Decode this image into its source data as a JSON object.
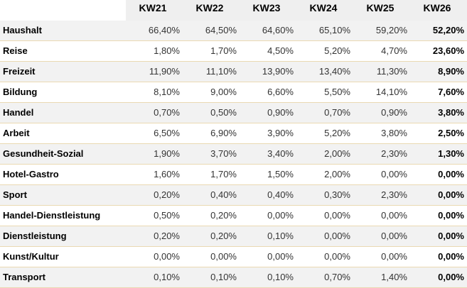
{
  "chart_data": {
    "type": "table",
    "columns": [
      "KW21",
      "KW22",
      "KW23",
      "KW24",
      "KW25",
      "KW26"
    ],
    "rows": [
      {
        "label": "Haushalt",
        "values": [
          "66,40%",
          "64,50%",
          "64,60%",
          "65,10%",
          "59,20%",
          "52,20%"
        ]
      },
      {
        "label": "Reise",
        "values": [
          "1,80%",
          "1,70%",
          "4,50%",
          "5,20%",
          "4,70%",
          "23,60%"
        ]
      },
      {
        "label": "Freizeit",
        "values": [
          "11,90%",
          "11,10%",
          "13,90%",
          "13,40%",
          "11,30%",
          "8,90%"
        ]
      },
      {
        "label": "Bildung",
        "values": [
          "8,10%",
          "9,00%",
          "6,60%",
          "5,50%",
          "14,10%",
          "7,60%"
        ]
      },
      {
        "label": "Handel",
        "values": [
          "0,70%",
          "0,50%",
          "0,90%",
          "0,70%",
          "0,90%",
          "3,80%"
        ]
      },
      {
        "label": "Arbeit",
        "values": [
          "6,50%",
          "6,90%",
          "3,90%",
          "5,20%",
          "3,80%",
          "2,50%"
        ]
      },
      {
        "label": "Gesundheit-Sozial",
        "values": [
          "1,90%",
          "3,70%",
          "3,40%",
          "2,00%",
          "2,30%",
          "1,30%"
        ]
      },
      {
        "label": "Hotel-Gastro",
        "values": [
          "1,60%",
          "1,70%",
          "1,50%",
          "2,00%",
          "0,00%",
          "0,00%"
        ]
      },
      {
        "label": "Sport",
        "values": [
          "0,20%",
          "0,40%",
          "0,40%",
          "0,30%",
          "2,30%",
          "0,00%"
        ]
      },
      {
        "label": "Handel-Dienstleistung",
        "values": [
          "0,50%",
          "0,20%",
          "0,00%",
          "0,00%",
          "0,00%",
          "0,00%"
        ]
      },
      {
        "label": "Dienstleistung",
        "values": [
          "0,20%",
          "0,20%",
          "0,10%",
          "0,00%",
          "0,00%",
          "0,00%"
        ]
      },
      {
        "label": "Kunst/Kultur",
        "values": [
          "0,00%",
          "0,00%",
          "0,00%",
          "0,00%",
          "0,00%",
          "0,00%"
        ]
      },
      {
        "label": "Transport",
        "values": [
          "0,10%",
          "0,10%",
          "0,10%",
          "0,70%",
          "1,40%",
          "0,00%"
        ]
      }
    ],
    "highlight_column": "KW26",
    "colors": {
      "row_border": "#ead9b2",
      "shaded_row": "#f2f2f2",
      "header_bg": "#efefef"
    }
  }
}
